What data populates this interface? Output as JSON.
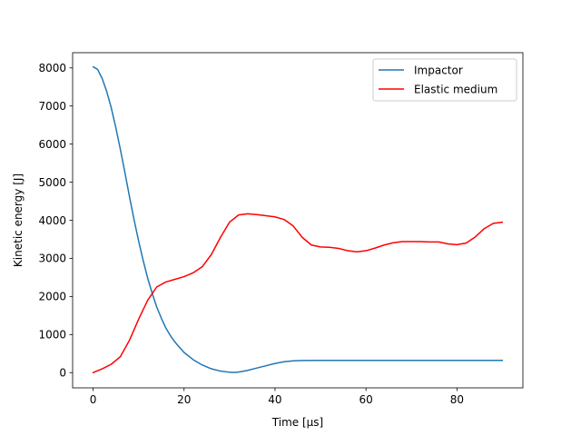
{
  "chart_data": {
    "type": "line",
    "title": "",
    "xlabel": "Time [μs]",
    "ylabel": "Kinetic energy [J]",
    "xlim": [
      -4.5,
      94.5
    ],
    "ylim": [
      -400,
      8400
    ],
    "xticks": [
      0,
      20,
      40,
      60,
      80
    ],
    "yticks": [
      0,
      1000,
      2000,
      3000,
      4000,
      5000,
      6000,
      7000,
      8000
    ],
    "grid": false,
    "legend_position": "top-right",
    "series": [
      {
        "name": "Impactor",
        "color": "#1f77b4",
        "x": [
          0,
          1,
          2,
          3,
          4,
          5,
          6,
          7,
          8,
          9,
          10,
          11,
          12,
          13,
          14,
          15,
          16,
          17,
          18,
          20,
          22,
          24,
          26,
          28,
          30,
          31,
          32,
          34,
          36,
          38,
          40,
          42,
          44,
          46,
          50,
          60,
          70,
          80,
          90
        ],
        "y": [
          8030,
          7960,
          7720,
          7380,
          6950,
          6430,
          5860,
          5250,
          4620,
          4020,
          3460,
          2950,
          2480,
          2080,
          1720,
          1430,
          1170,
          970,
          800,
          530,
          340,
          200,
          100,
          40,
          10,
          5,
          15,
          60,
          120,
          180,
          240,
          285,
          310,
          318,
          320,
          320,
          320,
          320,
          320
        ]
      },
      {
        "name": "Elastic medium",
        "color": "#ff0000",
        "x": [
          0,
          2,
          4,
          6,
          8,
          10,
          12,
          14,
          16,
          18,
          20,
          22,
          24,
          26,
          28,
          30,
          32,
          34,
          36,
          38,
          40,
          42,
          44,
          46,
          48,
          50,
          52,
          54,
          56,
          58,
          60,
          62,
          64,
          66,
          68,
          70,
          72,
          74,
          76,
          78,
          80,
          82,
          84,
          86,
          88,
          90
        ],
        "y": [
          0,
          100,
          220,
          420,
          850,
          1400,
          1900,
          2250,
          2380,
          2450,
          2520,
          2620,
          2780,
          3100,
          3550,
          3950,
          4140,
          4170,
          4150,
          4120,
          4090,
          4020,
          3850,
          3550,
          3350,
          3300,
          3290,
          3260,
          3200,
          3170,
          3200,
          3270,
          3350,
          3410,
          3440,
          3440,
          3440,
          3430,
          3430,
          3380,
          3360,
          3400,
          3560,
          3780,
          3920,
          3950
        ]
      }
    ]
  }
}
